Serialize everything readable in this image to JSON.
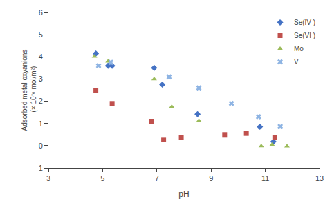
{
  "chart_data": {
    "type": "scatter",
    "xlabel": "pH",
    "ylabel": "Adsorbed metal oxyanions\n (× 10⁻⁶ mol/m²)",
    "xlim": [
      3,
      13
    ],
    "ylim": [
      -1,
      6
    ],
    "xticks": [
      3,
      5,
      7,
      9,
      11,
      13
    ],
    "yticks": [
      -1,
      0,
      1,
      2,
      3,
      4,
      5,
      6
    ],
    "grid": false,
    "legend": "upper right",
    "series": [
      {
        "name": "Se(IV )",
        "color": "#4472C4",
        "marker": "diamond",
        "x": [
          4.75,
          5.2,
          5.35,
          6.9,
          7.2,
          8.5,
          10.8,
          11.3
        ],
        "values": [
          4.15,
          3.6,
          3.6,
          3.5,
          2.75,
          1.42,
          0.85,
          0.18
        ]
      },
      {
        "name": "Se(VI )",
        "color": "#C0504D",
        "marker": "square",
        "x": [
          4.75,
          5.35,
          6.8,
          7.25,
          7.9,
          9.5,
          10.3,
          11.35
        ],
        "values": [
          2.48,
          1.9,
          1.1,
          0.28,
          0.37,
          0.5,
          0.55,
          0.38
        ]
      },
      {
        "name": "Mo",
        "color": "#9BBB59",
        "marker": "triangle-up",
        "x": [
          4.7,
          5.2,
          6.9,
          7.55,
          8.55,
          10.85,
          11.25,
          11.8
        ],
        "values": [
          4.02,
          3.8,
          3.0,
          1.75,
          1.12,
          -0.02,
          0.04,
          -0.03
        ]
      },
      {
        "name": "V",
        "color": "#8EB4E3",
        "marker": "x",
        "x": [
          4.85,
          5.3,
          7.45,
          8.55,
          9.75,
          10.75,
          11.55
        ],
        "values": [
          3.6,
          3.75,
          3.1,
          2.6,
          1.9,
          1.3,
          0.87
        ]
      }
    ]
  }
}
